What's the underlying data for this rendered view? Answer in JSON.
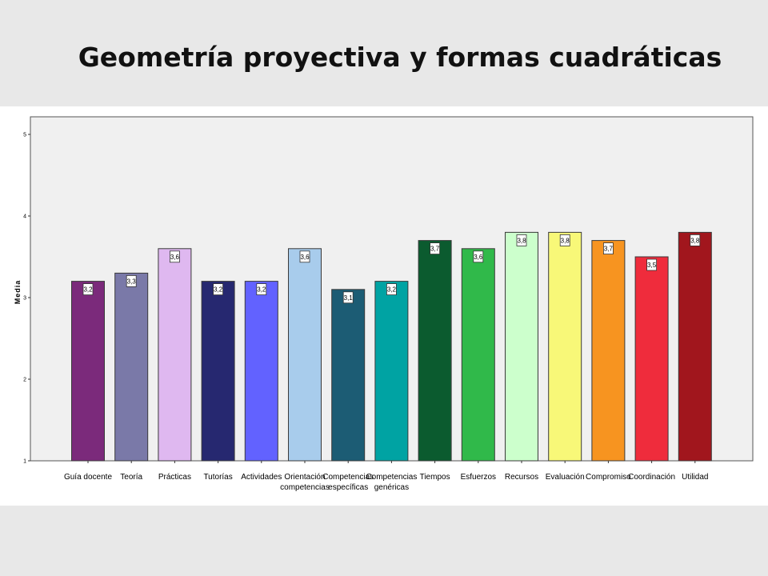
{
  "slide": {
    "title": "Geometría proyectiva y formas cuadráticas"
  },
  "chart_data": {
    "type": "bar",
    "title": "",
    "xlabel": "",
    "ylabel": "Media",
    "ylim": [
      1,
      5
    ],
    "yticks": [
      1,
      2,
      3,
      4,
      5
    ],
    "grid": false,
    "legend": "none",
    "categories": [
      [
        "Guía docente"
      ],
      [
        "Teoría"
      ],
      [
        "Prácticas"
      ],
      [
        "Tutorías"
      ],
      [
        "Actividades"
      ],
      [
        "Orientación",
        "competencias"
      ],
      [
        "Competencias",
        "específicas"
      ],
      [
        "Competencias",
        "genéricas"
      ],
      [
        "Tiempos"
      ],
      [
        "Esfuerzos"
      ],
      [
        "Recursos"
      ],
      [
        "Evaluación"
      ],
      [
        "Compromiso"
      ],
      [
        "Coordinación"
      ],
      [
        "Utilidad"
      ]
    ],
    "values": [
      3.2,
      3.3,
      3.6,
      3.2,
      3.2,
      3.6,
      3.1,
      3.2,
      3.7,
      3.6,
      3.8,
      3.8,
      3.7,
      3.5,
      3.8
    ],
    "value_labels": [
      "3,2",
      "3,3",
      "3,6",
      "3,2",
      "3,2",
      "3,6",
      "3,1",
      "3,2",
      "3,7",
      "3,6",
      "3,8",
      "3,8",
      "3,7",
      "3,5",
      "3,8"
    ],
    "colors": [
      "#7b2a7b",
      "#7a79a8",
      "#dfb8f0",
      "#262870",
      "#6262ff",
      "#a8ccec",
      "#1c5c74",
      "#00a3a3",
      "#0b5b2f",
      "#30b94a",
      "#ccffcc",
      "#f8f878",
      "#f79420",
      "#ef2c3c",
      "#a1161d"
    ]
  }
}
